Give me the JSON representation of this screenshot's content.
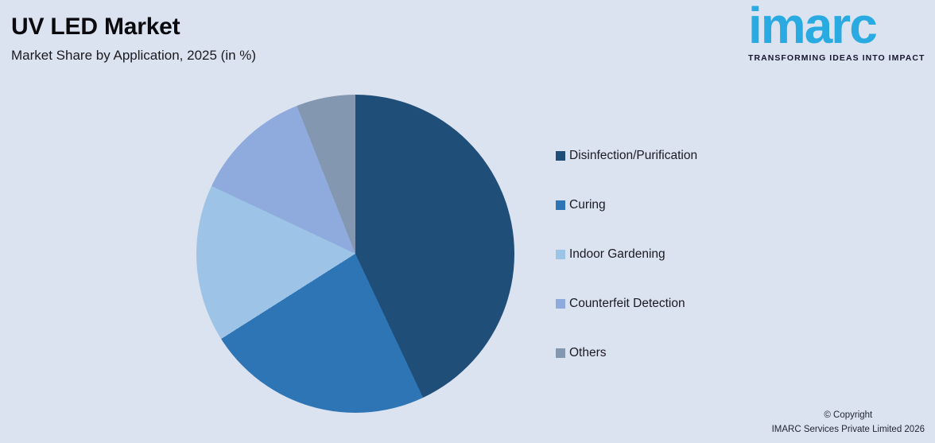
{
  "header": {
    "title": "UV LED Market",
    "subtitle": "Market Share by Application, 2025 (in %)"
  },
  "logo": {
    "wordmark": "imarc",
    "tagline": "TRANSFORMING IDEAS INTO IMPACT"
  },
  "footer": {
    "line1": "© Copyright",
    "line2": "IMARC Services Private Limited 2026"
  },
  "colors": {
    "background": "#dce3f0",
    "logo_blue": "#29abe2",
    "title_text": "#0b0b0f",
    "legend_text": "#1a1a24"
  },
  "chart_data": {
    "type": "pie",
    "title": "UV LED Market",
    "subtitle": "Market Share by Application, 2025 (in %)",
    "unit": "%",
    "categories": [
      "Disinfection/Purification",
      "Curing",
      "Indoor Gardening",
      "Counterfeit Detection",
      "Others"
    ],
    "values": [
      43,
      23,
      16,
      12,
      6
    ],
    "colors": [
      "#1F4E79",
      "#2E75B6",
      "#9DC3E6",
      "#8FAADC",
      "#8497B0"
    ],
    "start_angle_deg": 0,
    "direction": "clockwise",
    "legend_position": "right",
    "data_labels": false
  }
}
